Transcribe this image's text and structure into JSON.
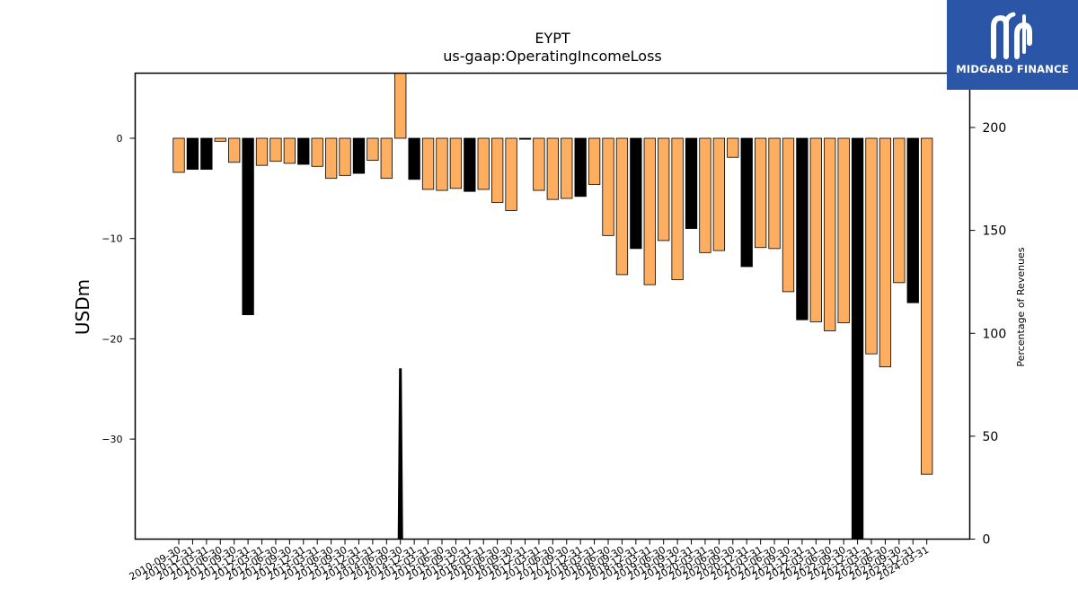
{
  "chart_data": {
    "type": "bar",
    "title": "EYPT",
    "subtitle": "us-gaap:OperatingIncomeLoss",
    "ylabel": "USDm",
    "y2label": "Percentage of Revenues",
    "ylim": [
      -40,
      6.5
    ],
    "y2lim": [
      0,
      232
    ],
    "yticks": [
      0,
      -10,
      -20,
      -30
    ],
    "ytick_labels": [
      "0",
      "−10",
      "−20",
      "−30"
    ],
    "y2ticks": [
      0,
      50,
      100,
      150,
      200
    ],
    "y2tick_labels": [
      "0",
      "50",
      "100",
      "150",
      "200"
    ],
    "grid": false,
    "colors": {
      "orange": "#fdae61",
      "black": "#000000",
      "edge": "#000000"
    },
    "categories": [
      "2010-09-30",
      "2010-12-31",
      "2011-03-31",
      "2011-06-30",
      "2011-09-30",
      "2011-12-31",
      "2012-03-31",
      "2012-06-30",
      "2012-09-30",
      "2012-12-31",
      "2013-03-31",
      "2013-06-30",
      "2013-09-30",
      "2013-12-31",
      "2014-03-31",
      "2014-06-30",
      "2014-09-30",
      "2014-12-31",
      "2015-03-31",
      "2015-06-30",
      "2015-09-30",
      "2015-12-31",
      "2016-03-31",
      "2016-06-30",
      "2016-09-30",
      "2016-12-31",
      "2017-03-31",
      "2017-06-30",
      "2017-09-30",
      "2017-12-31",
      "2018-03-31",
      "2018-06-30",
      "2018-09-30",
      "2018-12-31",
      "2019-03-31",
      "2019-06-30",
      "2019-09-30",
      "2019-12-31",
      "2020-03-31",
      "2020-06-30",
      "2020-09-30",
      "2020-12-31",
      "2021-03-31",
      "2021-06-30",
      "2021-09-30",
      "2021-12-31",
      "2022-03-31",
      "2022-06-30",
      "2022-09-30",
      "2022-12-31",
      "2023-03-31",
      "2023-06-30",
      "2023-09-30",
      "2023-12-31",
      "2024-03-31"
    ],
    "values": [
      -3.4,
      -3.1,
      -3.1,
      -0.3,
      -2.4,
      -17.6,
      -2.7,
      -2.3,
      -2.5,
      -2.6,
      -2.8,
      -4.0,
      -3.7,
      -3.5,
      -2.2,
      -4.0,
      6.5,
      -4.1,
      -5.1,
      -5.2,
      -5.0,
      -5.3,
      -5.1,
      -6.4,
      -7.2,
      -0.1,
      -5.2,
      -6.1,
      -6.0,
      -5.8,
      -4.6,
      -9.7,
      -13.6,
      -11.0,
      -14.6,
      -10.2,
      -14.1,
      -9.0,
      -11.4,
      -11.2,
      -1.9,
      -12.8,
      -10.9,
      -11.0,
      -15.3,
      -18.1,
      -18.3,
      -19.2,
      -18.4,
      -40.0,
      -21.5,
      -22.8,
      -14.4,
      -16.4,
      -33.5
    ],
    "bar_colors": [
      "orange",
      "black",
      "black",
      "orange",
      "orange",
      "black",
      "orange",
      "orange",
      "orange",
      "black",
      "orange",
      "orange",
      "orange",
      "black",
      "orange",
      "orange",
      "orange",
      "black",
      "orange",
      "orange",
      "orange",
      "black",
      "orange",
      "orange",
      "orange",
      "black",
      "orange",
      "orange",
      "orange",
      "black",
      "orange",
      "orange",
      "orange",
      "black",
      "orange",
      "orange",
      "orange",
      "black",
      "orange",
      "orange",
      "orange",
      "black",
      "orange",
      "orange",
      "orange",
      "black",
      "orange",
      "orange",
      "orange",
      "black",
      "orange",
      "orange",
      "orange",
      "black",
      "orange"
    ],
    "pct_of_revenues_series": {
      "x_index": 16,
      "values": [
        0,
        83,
        0
      ]
    }
  },
  "logo": {
    "text": "MIDGARD FINANCE"
  }
}
